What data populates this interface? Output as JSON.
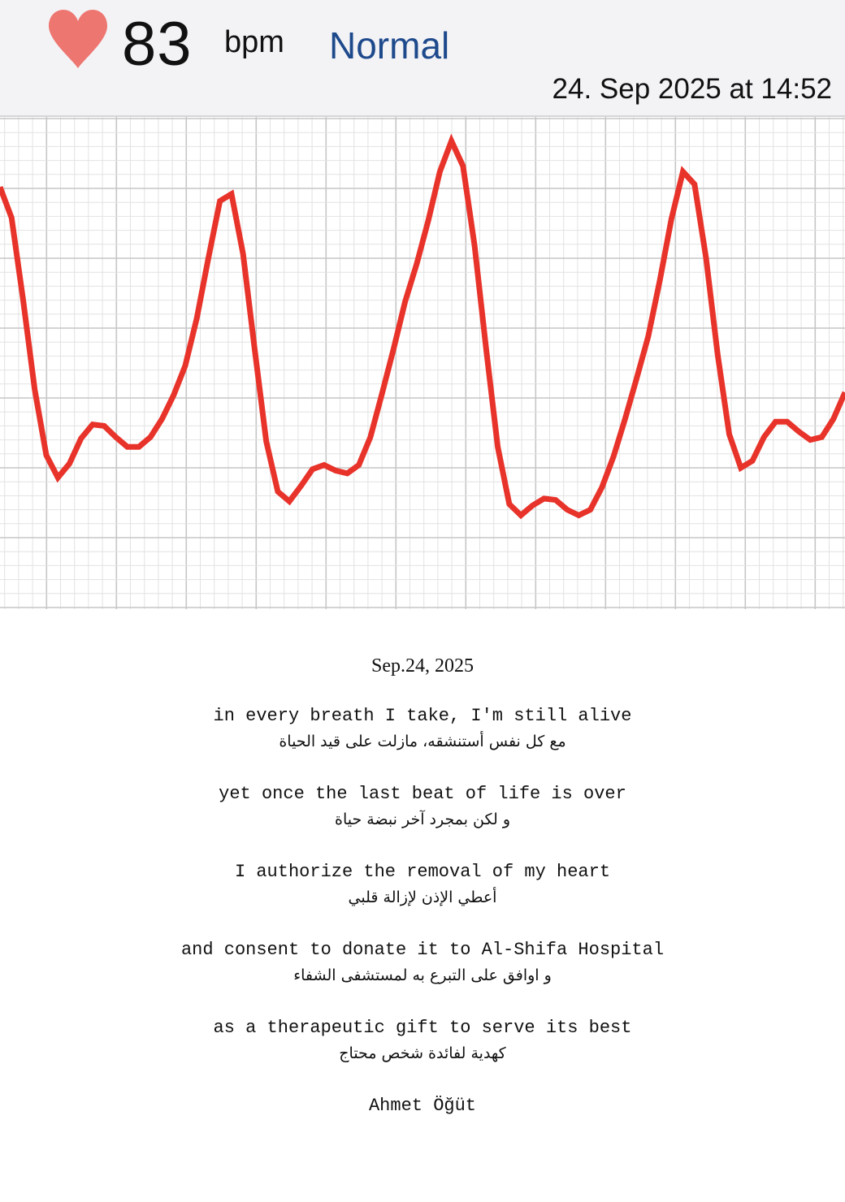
{
  "header": {
    "heart_icon": "heart-icon",
    "heart_color": "#ee7670",
    "bpm": "83",
    "unit": "bpm",
    "status": "Normal",
    "status_color": "#1e4a8c",
    "timestamp": "24. Sep 2025 at 14:52"
  },
  "chart_data": {
    "type": "line",
    "line_color": "#e8332a",
    "grid": true,
    "ylim": [
      0,
      35
    ],
    "series": [
      {
        "values": [
          30.1,
          27.9,
          22.0,
          15.6,
          10.9,
          9.3,
          10.3,
          12.1,
          13.1,
          13.0,
          12.2,
          11.5,
          11.5,
          12.2,
          13.5,
          15.2,
          17.3,
          20.7,
          25.0,
          29.1,
          29.6,
          25.3,
          18.5,
          11.9,
          8.3,
          7.6,
          8.7,
          9.9,
          10.2,
          9.8,
          9.6,
          10.2,
          12.2,
          15.3,
          18.5,
          21.9,
          24.6,
          27.7,
          31.2,
          33.4,
          31.6,
          25.9,
          18.5,
          11.5,
          7.4,
          6.6,
          7.3,
          7.8,
          7.7,
          7.0,
          6.6,
          7.0,
          8.6,
          10.8,
          13.5,
          16.4,
          19.4,
          23.4,
          27.8,
          31.2,
          30.3,
          25.0,
          18.1,
          12.4,
          10.0,
          10.5,
          12.2,
          13.3,
          13.3,
          12.6,
          12.0,
          12.2,
          13.5,
          15.4
        ]
      }
    ]
  },
  "poem": {
    "date": "Sep.24, 2025",
    "stanzas": [
      {
        "en": "in every breath I take, I'm still alive",
        "ar": "مع كل نفس أستنشقه، مازلت على قيد الحياة"
      },
      {
        "en": "yet once the last beat of life is over",
        "ar": "و لكن بمجرد آخر نبضة حياة"
      },
      {
        "en": "I authorize the removal of my heart",
        "ar": "أعطي الإذن لإزالة قلبي"
      },
      {
        "en": "and consent to donate it to Al-Shifa Hospital",
        "ar": "و اوافق على التبرع به لمستشفى الشفاء"
      },
      {
        "en": "as a therapeutic gift to serve its best",
        "ar": "كهدية لفائدة شخص محتاج"
      }
    ],
    "signature": "Ahmet Öğüt"
  }
}
